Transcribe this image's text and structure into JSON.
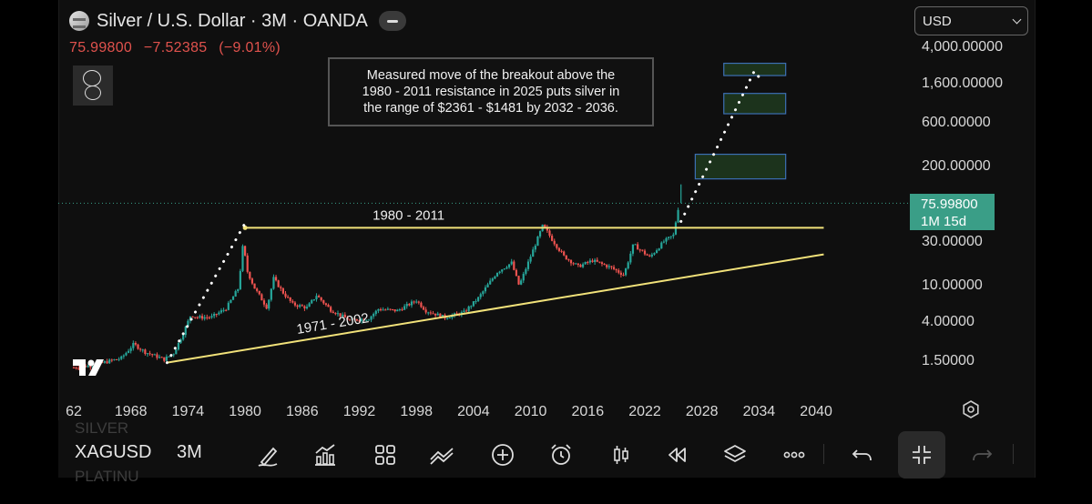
{
  "header": {
    "title": "Silver / U.S. Dollar · 3M · OANDA",
    "last": "75.99800",
    "change": "−7.52385",
    "change_pct": "(−9.01%)"
  },
  "currency": {
    "selected": "USD"
  },
  "price_tag": {
    "price": "75.99800",
    "countdown": "1M 15d"
  },
  "annotation": {
    "line1": "Measured move of the breakout above the",
    "line2": "1980 - 2011 resistance in 2025 puts silver in",
    "line3": "the range of $2361 - $1481 by 2032 - 2036."
  },
  "footer": {
    "symbol": "XAGUSD",
    "timeframe": "3M",
    "ghost_above": "SILVER",
    "ghost_below": "PLATINU"
  },
  "toolbar": {
    "icons": [
      "brush-icon",
      "indicators-icon",
      "layouts-icon",
      "drawing-tools-icon",
      "add-icon",
      "alert-icon",
      "candles-icon",
      "replay-icon",
      "layers-icon",
      "more-icon",
      "undo-icon",
      "fullscreen-exit-icon",
      "redo-icon"
    ]
  },
  "colors": {
    "up": "#26a69a",
    "down": "#ef5350",
    "trendline": "#f2e27a",
    "target_box_fill": "#1e3a1e",
    "target_box_stroke": "#3c6fb4",
    "price_tag": "#3a9e87"
  },
  "chart_data": {
    "type": "candlestick",
    "scale": "log",
    "x_ticks": [
      "62",
      "1968",
      "1974",
      "1980",
      "1986",
      "1992",
      "1998",
      "2004",
      "2010",
      "2016",
      "2022",
      "2028",
      "2034",
      "2040"
    ],
    "y_ticks": [
      "1.50000",
      "4.00000",
      "10.00000",
      "30.00000",
      "200.00000",
      "600.00000",
      "1,600.00000",
      "4,000.00000"
    ],
    "y_tick_values": [
      1.5,
      4,
      10,
      30,
      200,
      600,
      1600,
      4000
    ],
    "current_price_value": 75.998,
    "price_path": [
      {
        "x": 1962.0,
        "y": 1.22
      },
      {
        "x": 1964.0,
        "y": 1.29
      },
      {
        "x": 1967.0,
        "y": 1.55
      },
      {
        "x": 1968.3,
        "y": 2.2
      },
      {
        "x": 1969.5,
        "y": 1.8
      },
      {
        "x": 1971.5,
        "y": 1.5
      },
      {
        "x": 1972.5,
        "y": 1.75
      },
      {
        "x": 1973.5,
        "y": 2.9
      },
      {
        "x": 1974.3,
        "y": 4.6
      },
      {
        "x": 1975.0,
        "y": 4.3
      },
      {
        "x": 1976.5,
        "y": 4.35
      },
      {
        "x": 1978.0,
        "y": 5.4
      },
      {
        "x": 1979.3,
        "y": 9.0
      },
      {
        "x": 1979.8,
        "y": 28.0
      },
      {
        "x": 1980.2,
        "y": 14.0
      },
      {
        "x": 1981.0,
        "y": 9.0
      },
      {
        "x": 1982.3,
        "y": 5.5
      },
      {
        "x": 1983.0,
        "y": 11.5
      },
      {
        "x": 1984.0,
        "y": 8.0
      },
      {
        "x": 1985.0,
        "y": 6.0
      },
      {
        "x": 1986.5,
        "y": 5.5
      },
      {
        "x": 1987.5,
        "y": 7.5
      },
      {
        "x": 1989.0,
        "y": 5.2
      },
      {
        "x": 1991.0,
        "y": 4.0
      },
      {
        "x": 1993.0,
        "y": 4.2
      },
      {
        "x": 1994.0,
        "y": 5.3
      },
      {
        "x": 1996.0,
        "y": 5.1
      },
      {
        "x": 1998.0,
        "y": 6.6
      },
      {
        "x": 1999.0,
        "y": 5.1
      },
      {
        "x": 2001.0,
        "y": 4.3
      },
      {
        "x": 2003.0,
        "y": 4.9
      },
      {
        "x": 2004.5,
        "y": 7.0
      },
      {
        "x": 2006.5,
        "y": 13.5
      },
      {
        "x": 2008.0,
        "y": 17.0
      },
      {
        "x": 2008.8,
        "y": 9.5
      },
      {
        "x": 2010.0,
        "y": 20.0
      },
      {
        "x": 2011.3,
        "y": 44.0
      },
      {
        "x": 2012.3,
        "y": 30.0
      },
      {
        "x": 2013.5,
        "y": 20.0
      },
      {
        "x": 2015.0,
        "y": 15.5
      },
      {
        "x": 2016.5,
        "y": 18.0
      },
      {
        "x": 2018.5,
        "y": 15.0
      },
      {
        "x": 2019.8,
        "y": 12.5
      },
      {
        "x": 2020.8,
        "y": 27.0
      },
      {
        "x": 2022.5,
        "y": 19.5
      },
      {
        "x": 2024.0,
        "y": 29.0
      },
      {
        "x": 2025.0,
        "y": 34.0
      },
      {
        "x": 2025.6,
        "y": 76.0
      }
    ],
    "upper_wick_peak": {
      "x": 2025.8,
      "y": 122.0
    },
    "resistance_line": {
      "label": "1980 - 2011",
      "x1": 1980.0,
      "x2": 2040.8,
      "y": 41.0
    },
    "support_line": {
      "label": "1971 - 2002",
      "x1": 1971.8,
      "y1": 1.38,
      "x2": 2040.8,
      "y2": 21.0
    },
    "measured_move_1980": [
      {
        "x": 1971.8,
        "y": 1.38
      },
      {
        "x": 1980.0,
        "y": 46.0
      }
    ],
    "projection": [
      {
        "x": 2025.8,
        "y": 48.0
      },
      {
        "x": 2033.5,
        "y": 2100.0
      },
      {
        "x": 2034.4,
        "y": 1600.0
      }
    ],
    "target_zones": [
      {
        "x1": 2027.3,
        "x2": 2036.8,
        "y_low": 140,
        "y_high": 260
      },
      {
        "x1": 2030.3,
        "x2": 2036.8,
        "y_low": 720,
        "y_high": 1200
      },
      {
        "x1": 2030.3,
        "x2": 2036.8,
        "y_low": 1880,
        "y_high": 2560
      }
    ]
  }
}
